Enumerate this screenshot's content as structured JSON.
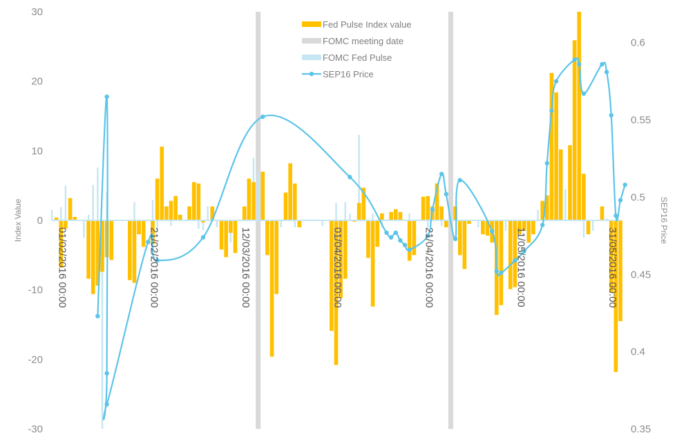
{
  "chart_data": {
    "type": "bar",
    "title": "",
    "xlabel": "",
    "ylabel": "Index Value",
    "y2label": "SEP16 Price",
    "ylim": [
      -30,
      30
    ],
    "y2lim": [
      0.35,
      0.62
    ],
    "yticks": [
      "30",
      "20",
      "10",
      "0",
      "-10",
      "-20",
      "-30"
    ],
    "yticks_values": [
      30,
      20,
      10,
      0,
      -10,
      -20,
      -30
    ],
    "y2ticks": [
      "0.6",
      "0.55",
      "0.5",
      "0.45",
      "0.4",
      "0.35"
    ],
    "y2ticks_values": [
      0.6,
      0.55,
      0.5,
      0.45,
      0.4,
      0.35
    ],
    "x_start": "2016-01-31",
    "x_end": "2016-06-03",
    "x_tick_labels": [
      {
        "date": "2016-02-01",
        "label": "01/02/2016 00:00"
      },
      {
        "date": "2016-02-21",
        "label": "21/02/2016 00:00"
      },
      {
        "date": "2016-03-12",
        "label": "12/03/2016 00:00"
      },
      {
        "date": "2016-04-01",
        "label": "01/04/2016 00:00"
      },
      {
        "date": "2016-04-21",
        "label": "21/04/2016 00:00"
      },
      {
        "date": "2016-05-11",
        "label": "11/05/2016 00:00"
      },
      {
        "date": "2016-05-31",
        "label": "31/05/2016 00:00"
      }
    ],
    "legend_position": "top-center",
    "legend": [
      {
        "name": "Fed Pulse Index value",
        "kind": "bar",
        "color": "#ffc000"
      },
      {
        "name": "FOMC meeting date",
        "kind": "bar",
        "color": "#d9d9d9"
      },
      {
        "name": "FOMC Fed Pulse",
        "kind": "bar",
        "color": "#c5e6f3"
      },
      {
        "name": "SEP16 Price",
        "kind": "line-marker",
        "color": "#5bc4e8"
      }
    ],
    "fomc_meeting_dates": [
      "2016-03-16",
      "2016-04-27"
    ],
    "fed_pulse_index": [
      {
        "date": "2016-02-01",
        "value": 0.4
      },
      {
        "date": "2016-02-02",
        "value": -6.8
      },
      {
        "date": "2016-02-03",
        "value": -1.2
      },
      {
        "date": "2016-02-04",
        "value": 3.2
      },
      {
        "date": "2016-02-05",
        "value": 0.5
      },
      {
        "date": "2016-02-08",
        "value": -8.4
      },
      {
        "date": "2016-02-09",
        "value": -10.6
      },
      {
        "date": "2016-02-10",
        "value": -9.4
      },
      {
        "date": "2016-02-11",
        "value": -7.4
      },
      {
        "date": "2016-02-12",
        "value": -5.3
      },
      {
        "date": "2016-02-13",
        "value": -5.7
      },
      {
        "date": "2016-02-17",
        "value": -8.6
      },
      {
        "date": "2016-02-18",
        "value": -9.0
      },
      {
        "date": "2016-02-19",
        "value": -2.0
      },
      {
        "date": "2016-02-20",
        "value": -3.8
      },
      {
        "date": "2016-02-22",
        "value": -3.4
      },
      {
        "date": "2016-02-23",
        "value": 6.0
      },
      {
        "date": "2016-02-24",
        "value": 10.6
      },
      {
        "date": "2016-02-25",
        "value": 2.0
      },
      {
        "date": "2016-02-26",
        "value": 2.8
      },
      {
        "date": "2016-02-27",
        "value": 3.5
      },
      {
        "date": "2016-02-28",
        "value": 0.8
      },
      {
        "date": "2016-03-01",
        "value": 2.0
      },
      {
        "date": "2016-03-02",
        "value": 5.5
      },
      {
        "date": "2016-03-03",
        "value": 5.3
      },
      {
        "date": "2016-03-04",
        "value": -0.3
      },
      {
        "date": "2016-03-06",
        "value": 2.0
      },
      {
        "date": "2016-03-08",
        "value": -4.2
      },
      {
        "date": "2016-03-09",
        "value": -5.3
      },
      {
        "date": "2016-03-10",
        "value": -1.8
      },
      {
        "date": "2016-03-11",
        "value": -4.7
      },
      {
        "date": "2016-03-13",
        "value": 2.0
      },
      {
        "date": "2016-03-14",
        "value": 6.0
      },
      {
        "date": "2016-03-15",
        "value": 5.5
      },
      {
        "date": "2016-03-17",
        "value": 7.0
      },
      {
        "date": "2016-03-18",
        "value": -5.0
      },
      {
        "date": "2016-03-19",
        "value": -19.6
      },
      {
        "date": "2016-03-20",
        "value": -10.6
      },
      {
        "date": "2016-03-22",
        "value": 4.0
      },
      {
        "date": "2016-03-23",
        "value": 8.2
      },
      {
        "date": "2016-03-24",
        "value": 5.3
      },
      {
        "date": "2016-03-25",
        "value": -1.0
      },
      {
        "date": "2016-04-01",
        "value": -15.9
      },
      {
        "date": "2016-04-02",
        "value": -20.8
      },
      {
        "date": "2016-04-03",
        "value": -11.2
      },
      {
        "date": "2016-04-04",
        "value": -8.4
      },
      {
        "date": "2016-04-06",
        "value": -0.2
      },
      {
        "date": "2016-04-07",
        "value": 2.5
      },
      {
        "date": "2016-04-08",
        "value": 4.7
      },
      {
        "date": "2016-04-09",
        "value": -5.4
      },
      {
        "date": "2016-04-10",
        "value": -12.4
      },
      {
        "date": "2016-04-11",
        "value": -3.8
      },
      {
        "date": "2016-04-12",
        "value": 1.0
      },
      {
        "date": "2016-04-14",
        "value": 1.2
      },
      {
        "date": "2016-04-15",
        "value": 1.6
      },
      {
        "date": "2016-04-16",
        "value": 1.2
      },
      {
        "date": "2016-04-18",
        "value": -5.8
      },
      {
        "date": "2016-04-19",
        "value": -5.0
      },
      {
        "date": "2016-04-21",
        "value": 3.4
      },
      {
        "date": "2016-04-22",
        "value": 3.5
      },
      {
        "date": "2016-04-23",
        "value": 2.0
      },
      {
        "date": "2016-04-24",
        "value": 5.3
      },
      {
        "date": "2016-04-25",
        "value": 2.0
      },
      {
        "date": "2016-04-26",
        "value": -1.0
      },
      {
        "date": "2016-04-28",
        "value": 2.0
      },
      {
        "date": "2016-04-29",
        "value": -5.0
      },
      {
        "date": "2016-04-30",
        "value": -7.0
      },
      {
        "date": "2016-05-01",
        "value": -0.5
      },
      {
        "date": "2016-05-04",
        "value": -2.0
      },
      {
        "date": "2016-05-05",
        "value": -2.2
      },
      {
        "date": "2016-05-06",
        "value": -3.2
      },
      {
        "date": "2016-05-07",
        "value": -13.6
      },
      {
        "date": "2016-05-08",
        "value": -12.2
      },
      {
        "date": "2016-05-10",
        "value": -9.9
      },
      {
        "date": "2016-05-11",
        "value": -9.6
      },
      {
        "date": "2016-05-12",
        "value": -2.0
      },
      {
        "date": "2016-05-13",
        "value": -1.5
      },
      {
        "date": "2016-05-14",
        "value": -3.2
      },
      {
        "date": "2016-05-15",
        "value": -2.0
      },
      {
        "date": "2016-05-17",
        "value": 2.8
      },
      {
        "date": "2016-05-18",
        "value": 3.6
      },
      {
        "date": "2016-05-19",
        "value": 21.2
      },
      {
        "date": "2016-05-20",
        "value": 18.4
      },
      {
        "date": "2016-05-21",
        "value": 10.2
      },
      {
        "date": "2016-05-23",
        "value": 10.8
      },
      {
        "date": "2016-05-24",
        "value": 25.9
      },
      {
        "date": "2016-05-25",
        "value": 30.0
      },
      {
        "date": "2016-05-26",
        "value": 6.7
      },
      {
        "date": "2016-05-27",
        "value": -2.0
      },
      {
        "date": "2016-05-30",
        "value": 2.0
      },
      {
        "date": "2016-06-01",
        "value": -10.4
      },
      {
        "date": "2016-06-02",
        "value": -21.8
      },
      {
        "date": "2016-06-03",
        "value": -14.5
      }
    ],
    "fomc_fed_pulse": [
      {
        "date": "2016-01-31",
        "value": 1.5
      },
      {
        "date": "2016-02-02",
        "value": 1.9
      },
      {
        "date": "2016-02-03",
        "value": 5.0
      },
      {
        "date": "2016-02-07",
        "value": -2.5
      },
      {
        "date": "2016-02-08",
        "value": 0.8
      },
      {
        "date": "2016-02-09",
        "value": 5.1
      },
      {
        "date": "2016-02-10",
        "value": 7.6
      },
      {
        "date": "2016-02-11",
        "value": -30.0
      },
      {
        "date": "2016-02-12",
        "value": 4.0
      },
      {
        "date": "2016-02-17",
        "value": -6.8
      },
      {
        "date": "2016-02-18",
        "value": 2.6
      },
      {
        "date": "2016-02-22",
        "value": 2.9
      },
      {
        "date": "2016-02-23",
        "value": -1.5
      },
      {
        "date": "2016-02-26",
        "value": -0.8
      },
      {
        "date": "2016-02-27",
        "value": 2.0
      },
      {
        "date": "2016-03-03",
        "value": -1.2
      },
      {
        "date": "2016-03-04",
        "value": -1.4
      },
      {
        "date": "2016-03-05",
        "value": 2.0
      },
      {
        "date": "2016-03-07",
        "value": -1.0
      },
      {
        "date": "2016-03-10",
        "value": -3.2
      },
      {
        "date": "2016-03-13",
        "value": 1.0
      },
      {
        "date": "2016-03-15",
        "value": 9.0
      },
      {
        "date": "2016-03-16",
        "value": 7.0
      },
      {
        "date": "2016-03-18",
        "value": -4.0
      },
      {
        "date": "2016-03-21",
        "value": -1.0
      },
      {
        "date": "2016-03-24",
        "value": -1.0
      },
      {
        "date": "2016-03-30",
        "value": -0.8
      },
      {
        "date": "2016-04-02",
        "value": 2.5
      },
      {
        "date": "2016-04-04",
        "value": 2.6
      },
      {
        "date": "2016-04-05",
        "value": 1.0
      },
      {
        "date": "2016-04-07",
        "value": 12.3
      },
      {
        "date": "2016-04-10",
        "value": 1.0
      },
      {
        "date": "2016-04-12",
        "value": -1.0
      },
      {
        "date": "2016-04-18",
        "value": 1.0
      },
      {
        "date": "2016-04-21",
        "value": 1.0
      },
      {
        "date": "2016-04-22",
        "value": -1.0
      },
      {
        "date": "2016-04-25",
        "value": -0.8
      },
      {
        "date": "2016-04-27",
        "value": 0.8
      },
      {
        "date": "2016-05-03",
        "value": -1.0
      },
      {
        "date": "2016-05-09",
        "value": -1.5
      },
      {
        "date": "2016-05-12",
        "value": -2.0
      },
      {
        "date": "2016-05-16",
        "value": 1.5
      },
      {
        "date": "2016-05-18",
        "value": 3.5
      },
      {
        "date": "2016-05-22",
        "value": 4.5
      },
      {
        "date": "2016-05-24",
        "value": 5.5
      },
      {
        "date": "2016-05-25",
        "value": 4.5
      },
      {
        "date": "2016-05-26",
        "value": -2.5
      },
      {
        "date": "2016-05-28",
        "value": -1.5
      },
      {
        "date": "2016-05-31",
        "value": 0.3
      },
      {
        "date": "2016-06-01",
        "value": -1.0
      },
      {
        "date": "2016-06-03",
        "value": -4.0
      }
    ],
    "sep16_price": [
      {
        "date": "2016-02-10",
        "value": 0.423
      },
      {
        "date": "2016-02-12",
        "value": 0.565
      },
      {
        "date": "2016-02-12",
        "value": 0.386
      },
      {
        "date": "2016-02-12",
        "value": 0.366
      },
      {
        "date": "2016-02-21",
        "value": 0.471
      },
      {
        "date": "2016-02-23",
        "value": 0.459
      },
      {
        "date": "2016-03-04",
        "value": 0.474
      },
      {
        "date": "2016-03-17",
        "value": 0.552
      },
      {
        "date": "2016-04-05",
        "value": 0.513
      },
      {
        "date": "2016-04-13",
        "value": 0.477
      },
      {
        "date": "2016-04-14",
        "value": 0.474
      },
      {
        "date": "2016-04-15",
        "value": 0.477
      },
      {
        "date": "2016-04-16",
        "value": 0.472
      },
      {
        "date": "2016-04-17",
        "value": 0.469
      },
      {
        "date": "2016-04-18",
        "value": 0.466
      },
      {
        "date": "2016-04-22",
        "value": 0.475
      },
      {
        "date": "2016-04-23",
        "value": 0.492
      },
      {
        "date": "2016-04-25",
        "value": 0.515
      },
      {
        "date": "2016-04-26",
        "value": 0.502
      },
      {
        "date": "2016-04-28",
        "value": 0.473
      },
      {
        "date": "2016-04-29",
        "value": 0.511
      },
      {
        "date": "2016-05-06",
        "value": 0.478
      },
      {
        "date": "2016-05-07",
        "value": 0.452
      },
      {
        "date": "2016-05-08",
        "value": 0.451
      },
      {
        "date": "2016-05-11",
        "value": 0.459
      },
      {
        "date": "2016-05-13",
        "value": 0.465
      },
      {
        "date": "2016-05-17",
        "value": 0.482
      },
      {
        "date": "2016-05-18",
        "value": 0.522
      },
      {
        "date": "2016-05-19",
        "value": 0.556
      },
      {
        "date": "2016-05-20",
        "value": 0.575
      },
      {
        "date": "2016-05-24",
        "value": 0.589
      },
      {
        "date": "2016-05-25",
        "value": 0.586
      },
      {
        "date": "2016-05-26",
        "value": 0.567
      },
      {
        "date": "2016-05-30",
        "value": 0.586
      },
      {
        "date": "2016-05-31",
        "value": 0.581
      },
      {
        "date": "2016-06-01",
        "value": 0.553
      },
      {
        "date": "2016-06-02",
        "value": 0.488
      },
      {
        "date": "2016-06-03",
        "value": 0.498
      },
      {
        "date": "2016-06-04",
        "value": 0.508
      }
    ]
  }
}
